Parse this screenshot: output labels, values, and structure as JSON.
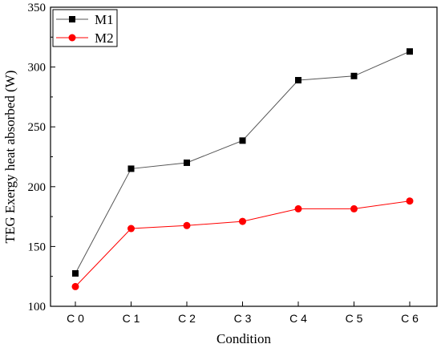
{
  "chart_data": {
    "type": "line",
    "categories": [
      "C 0",
      "C 1",
      "C 2",
      "C 3",
      "C 4",
      "C 5",
      "C 6"
    ],
    "series": [
      {
        "name": "M1",
        "color": "#000000",
        "marker": "square",
        "line_color": "#555555",
        "values": [
          127.5,
          215,
          220,
          238.5,
          289,
          292.5,
          313
        ]
      },
      {
        "name": "M2",
        "color": "#ff0000",
        "marker": "circle",
        "line_color": "#ff0000",
        "values": [
          116.5,
          165,
          167.5,
          171,
          181.5,
          181.5,
          188
        ]
      }
    ],
    "xlabel": "Condition",
    "ylabel": "TEG Exergy heat absorbed (W)",
    "ylim": [
      100,
      350
    ],
    "yticks": [
      100,
      150,
      200,
      250,
      300,
      350
    ],
    "grid": false,
    "legend_position": "top-left"
  }
}
